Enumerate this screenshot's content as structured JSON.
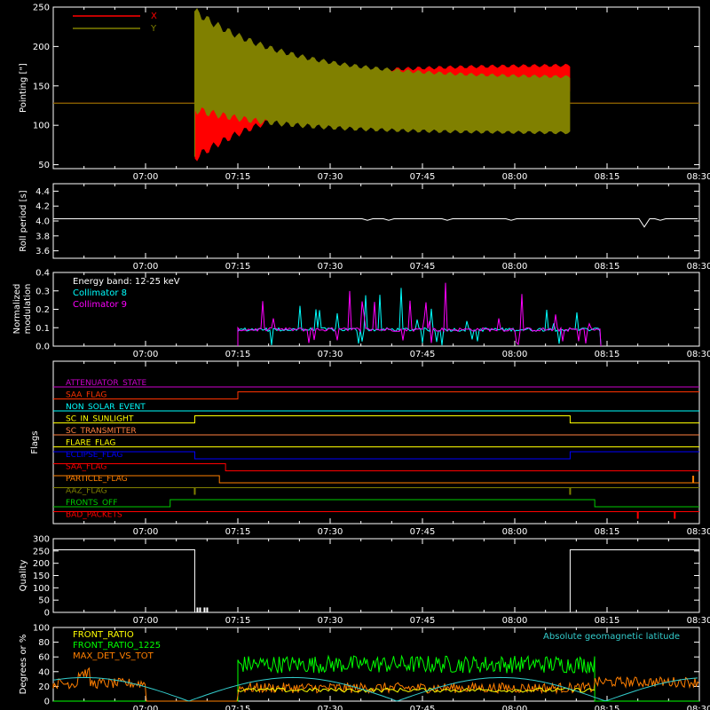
{
  "x_axis": {
    "start": "06:45",
    "end": "08:30",
    "tick_labels": [
      "07:00",
      "07:15",
      "07:30",
      "07:45",
      "08:00",
      "08:15",
      "08:30"
    ],
    "tick_minutes": [
      15,
      30,
      45,
      60,
      75,
      90,
      105
    ]
  },
  "chart_data": [
    {
      "type": "line",
      "ylabel": "Pointing [\"]",
      "ylim": [
        45,
        250
      ],
      "yticks": [
        50,
        100,
        150,
        200,
        250
      ],
      "series": [
        {
          "name": "X",
          "color": "#ff0000",
          "baseline": 128,
          "active_window": [
            "07:08",
            "08:09"
          ],
          "envelope_start": {
            "lo": 58,
            "hi": 128
          },
          "envelope_end": {
            "lo": 143,
            "hi": 177
          }
        },
        {
          "name": "Y",
          "color": "#808000",
          "baseline": 128,
          "active_window": [
            "07:08",
            "08:09"
          ],
          "envelope_start": {
            "lo": 120,
            "hi": 245
          },
          "envelope_end": {
            "lo": 90,
            "hi": 160
          }
        }
      ]
    },
    {
      "type": "line",
      "ylabel": "Roll period [s]",
      "ylim": [
        3.5,
        4.5
      ],
      "yticks": [
        3.6,
        3.8,
        4.0,
        4.2,
        4.4
      ],
      "series": [
        {
          "color": "#ffffff",
          "value": 4.03,
          "dip_at": "08:21",
          "dip_value": 3.92
        }
      ]
    },
    {
      "type": "line",
      "ylabel_lines": [
        "Normalized",
        "modulation"
      ],
      "ylim": [
        0,
        0.4
      ],
      "yticks": [
        0.0,
        0.1,
        0.2,
        0.3,
        0.4
      ],
      "annotation": "Energy band: 12-25 keV",
      "active_window": [
        "07:15",
        "08:14"
      ],
      "series": [
        {
          "name": "Collimator 8",
          "color": "#00ffff",
          "level": 0.09
        },
        {
          "name": "Collimator 9",
          "color": "#ff00ff",
          "level": 0.09
        }
      ]
    },
    {
      "type": "flags",
      "ylabel": "Flags",
      "flags": [
        {
          "name": "ATTENUATOR_STATE",
          "color": "#cc00cc",
          "steps": []
        },
        {
          "name": "SAA_FLAG",
          "color": "#ff3300",
          "steps": [
            [
              "07:15",
              1
            ]
          ]
        },
        {
          "name": "NON_SOLAR_EVENT",
          "color": "#00ffff",
          "steps": []
        },
        {
          "name": "SC_IN_SUNLIGHT",
          "color": "#ffff00",
          "steps": [
            [
              "07:08",
              1
            ],
            [
              "08:09",
              0
            ]
          ]
        },
        {
          "name": "SC_TRANSMITTER",
          "color": "#ff7f3f",
          "steps": []
        },
        {
          "name": "FLARE_FLAG",
          "color": "#ffff00",
          "steps": []
        },
        {
          "name": "ECLIPSE_FLAG",
          "color": "#0000ff",
          "steps": [
            [
              "07:08",
              0
            ],
            [
              "08:09",
              1
            ]
          ]
        },
        {
          "name": "SAA_FLAG",
          "color": "#ff0000",
          "steps": [
            [
              "07:13",
              0
            ]
          ]
        },
        {
          "name": "PARTICLE_FLAG",
          "color": "#ff7f00",
          "steps": [
            [
              "07:12",
              0
            ]
          ],
          "spikes": [
            "08:29"
          ]
        },
        {
          "name": "AAZ_FLAG",
          "color": "#808000",
          "spikes": [
            "07:08",
            "08:09"
          ]
        },
        {
          "name": "FRONTS_OFF",
          "color": "#00cc00",
          "steps": [
            [
              "07:04",
              1
            ],
            [
              "08:13",
              0
            ]
          ]
        },
        {
          "name": "BAD_PACKETS",
          "color": "#ff0000",
          "spikes": [
            "08:20",
            "08:26"
          ]
        }
      ]
    },
    {
      "type": "line",
      "ylabel": "Quality",
      "ylim": [
        0,
        300
      ],
      "yticks": [
        0,
        50,
        100,
        150,
        200,
        250,
        300
      ],
      "series": [
        {
          "color": "#ffffff",
          "high": 255,
          "drop_at": "07:08",
          "rise_at": "08:09",
          "low": 0
        }
      ]
    },
    {
      "type": "line",
      "ylabel": "Degrees or %",
      "ylim": [
        0,
        100
      ],
      "yticks": [
        0,
        20,
        40,
        60,
        80,
        100
      ],
      "active_window": [
        "07:15",
        "08:13"
      ],
      "series": [
        {
          "name": "FRONT_RATIO",
          "color": "#ffff00",
          "level": 15
        },
        {
          "name": "FRONT_RATIO_1225",
          "color": "#00ff00",
          "level": 50
        },
        {
          "name": "MAX_DET_VS_TOT",
          "color": "#ff7f00",
          "level": 18
        },
        {
          "name": "Absolute geomagnetic latitude",
          "color": "#33cccc"
        }
      ]
    }
  ]
}
